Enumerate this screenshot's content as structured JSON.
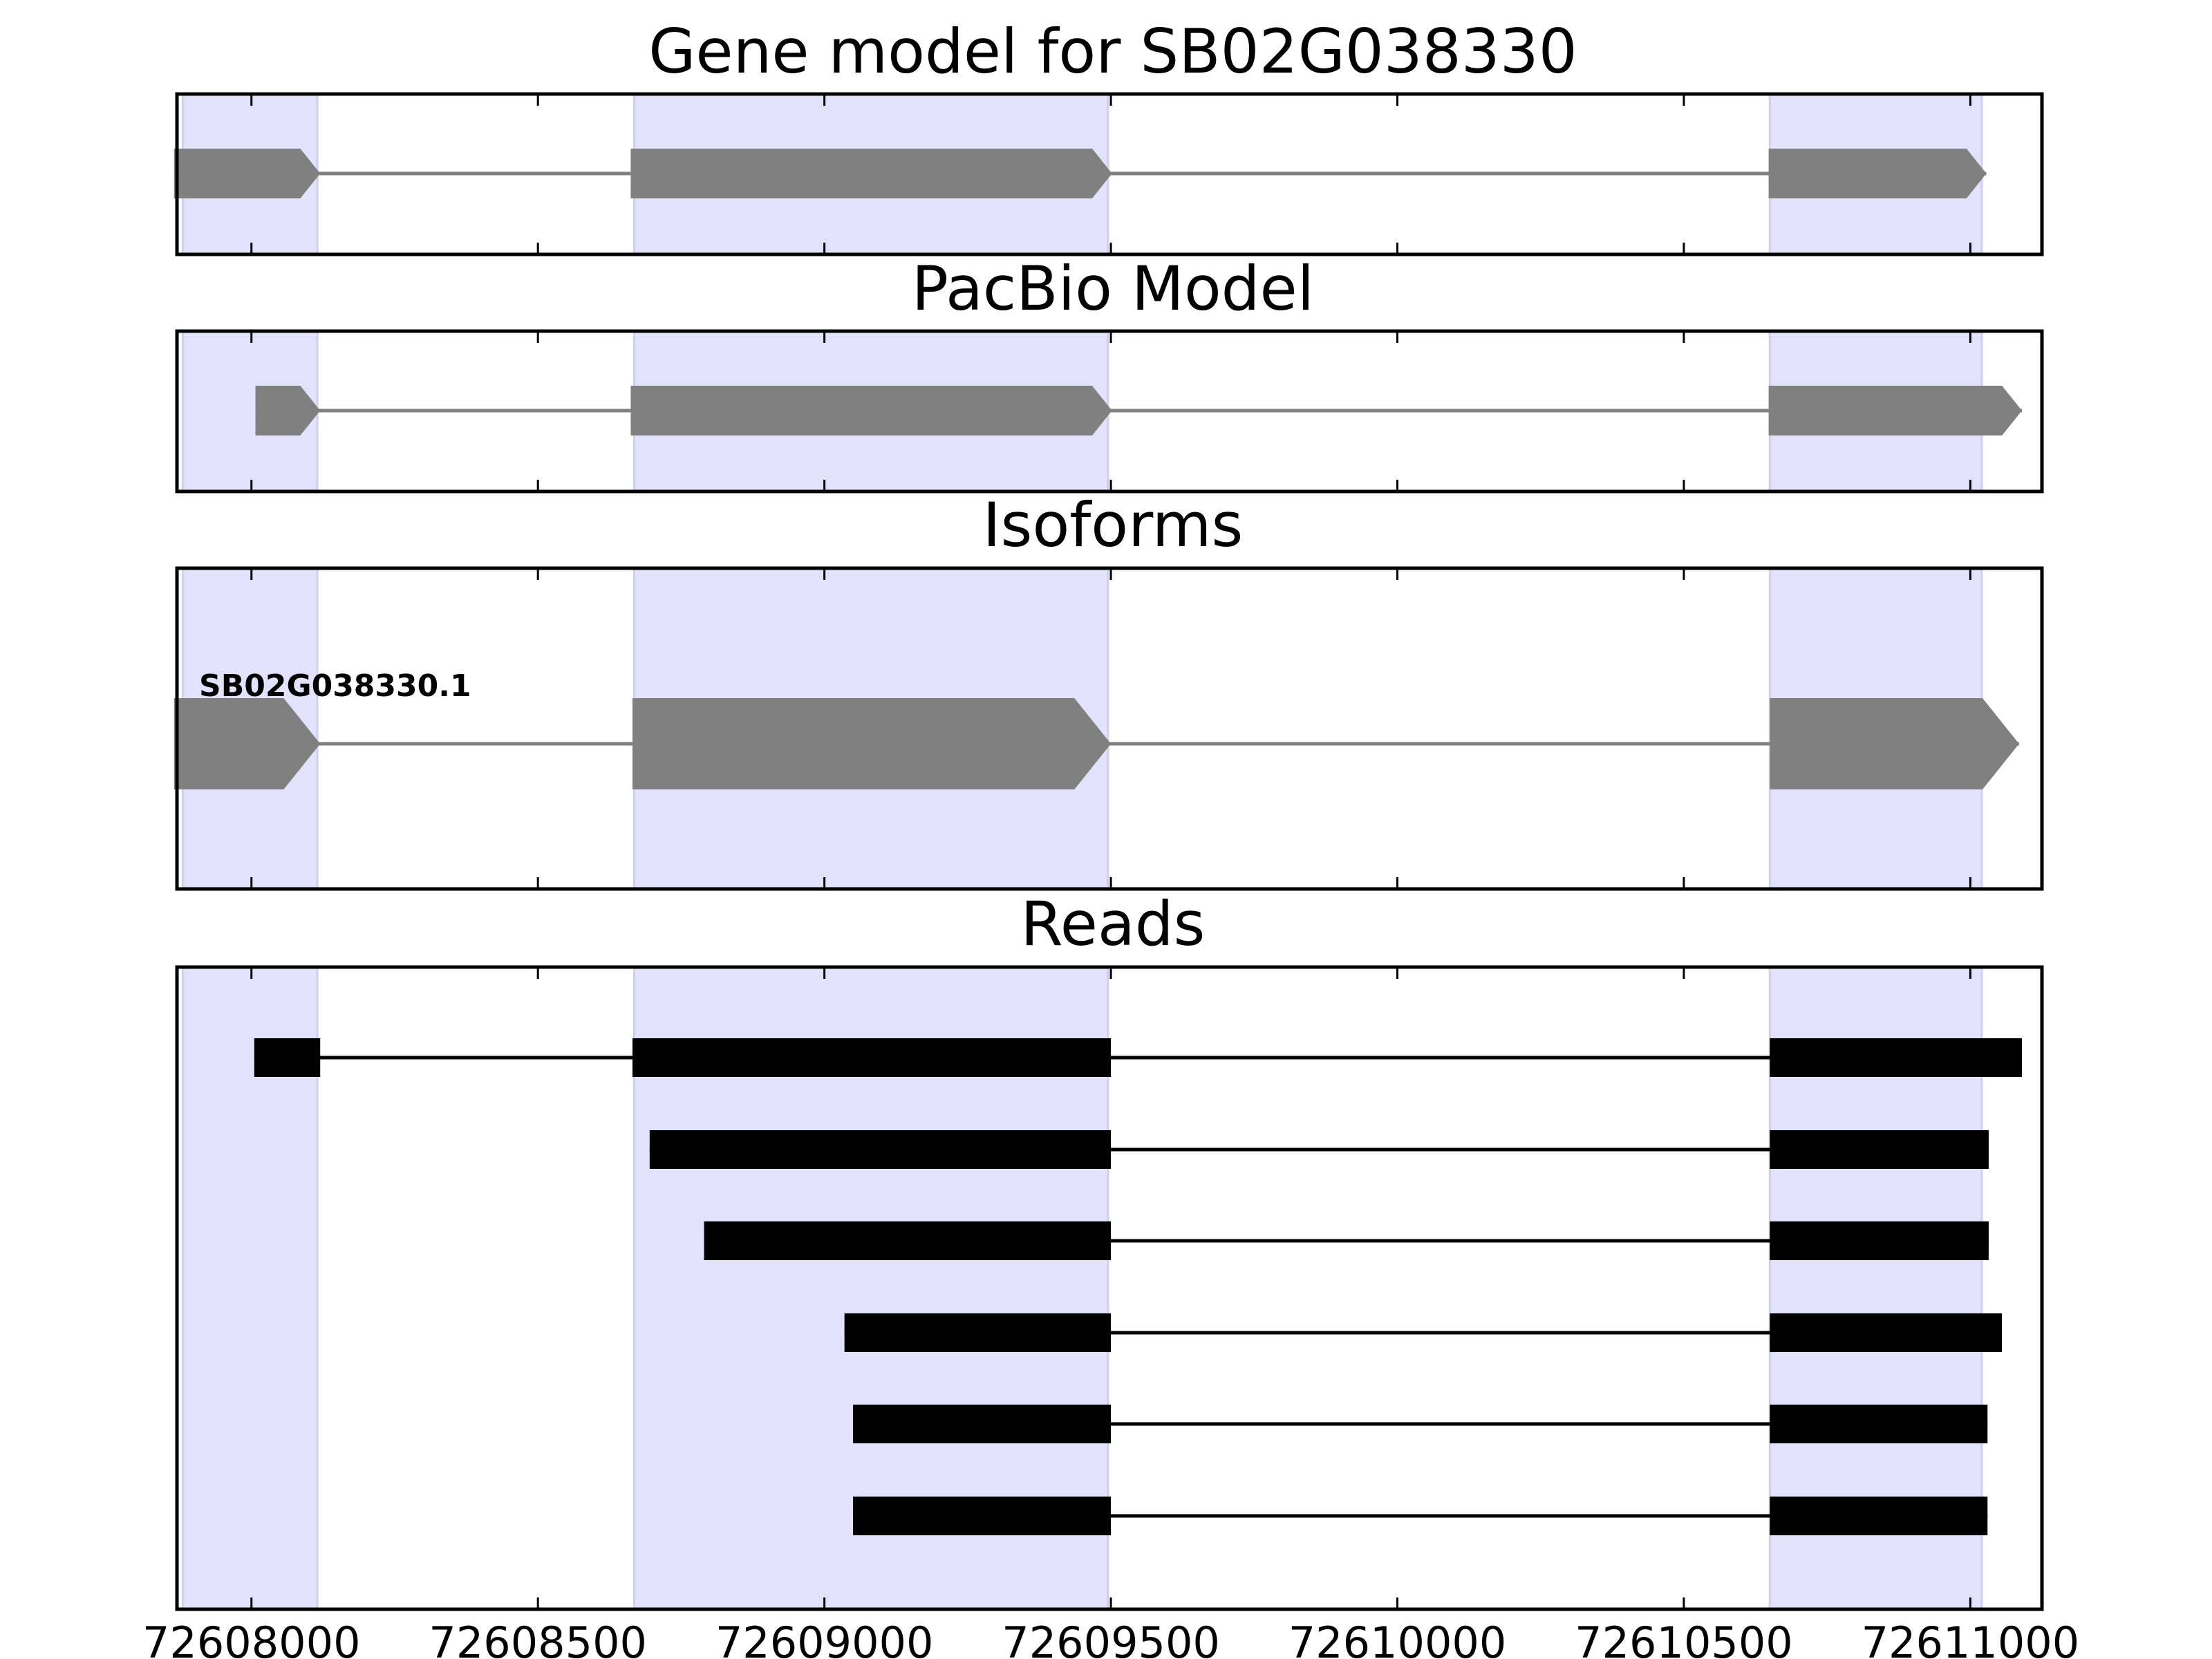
{
  "chart_data": {
    "type": "gene-model-track",
    "x_range": [
      72607870,
      72611125
    ],
    "x_ticks": [
      72608000,
      72608500,
      72609000,
      72609500,
      72610000,
      72610500,
      72611000
    ],
    "x_tick_labels": [
      "72608000",
      "72608500",
      "72609000",
      "72609500",
      "72610000",
      "72610500",
      "72611000"
    ],
    "highlight_regions": [
      {
        "start": 72607880,
        "end": 72608115
      },
      {
        "start": 72608668,
        "end": 72609495
      },
      {
        "start": 72610650,
        "end": 72611020
      }
    ],
    "colors": {
      "highlight": "#e2e2fc",
      "highlight_edge": "#cfcfee",
      "model": "#808080",
      "read": "#000000",
      "axis": "#000000"
    },
    "panels": [
      {
        "title": "Gene model for SB02G038330",
        "kind": "model",
        "rows": [
          {
            "label": "",
            "exons": [
              [
                72607865,
                72608120
              ],
              [
                72608662,
                72609502
              ],
              [
                72610648,
                72611028
              ]
            ]
          }
        ]
      },
      {
        "title": "PacBio Model",
        "kind": "model",
        "rows": [
          {
            "label": "",
            "exons": [
              [
                72608007,
                72608120
              ],
              [
                72608662,
                72609502
              ],
              [
                72610648,
                72611090
              ]
            ]
          }
        ]
      },
      {
        "title": "Isoforms",
        "kind": "isoform",
        "rows": [
          {
            "label": "SB02G038330.1",
            "exons": [
              [
                72607865,
                72608120
              ],
              [
                72608665,
                72609500
              ],
              [
                72610650,
                72611085
              ]
            ]
          }
        ]
      },
      {
        "title": "Reads",
        "kind": "reads",
        "rows": [
          {
            "label": "",
            "exons": [
              [
                72608005,
                72608120
              ],
              [
                72608665,
                72609500
              ],
              [
                72610650,
                72611090
              ]
            ]
          },
          {
            "label": "",
            "exons": [
              [
                72608695,
                72609500
              ],
              [
                72610650,
                72611032
              ]
            ]
          },
          {
            "label": "",
            "exons": [
              [
                72608790,
                72609500
              ],
              [
                72610650,
                72611032
              ]
            ]
          },
          {
            "label": "",
            "exons": [
              [
                72609035,
                72609500
              ],
              [
                72610650,
                72611055
              ]
            ]
          },
          {
            "label": "",
            "exons": [
              [
                72609050,
                72609500
              ],
              [
                72610650,
                72611030
              ]
            ]
          },
          {
            "label": "",
            "exons": [
              [
                72609050,
                72609500
              ],
              [
                72610650,
                72611030
              ]
            ]
          }
        ]
      }
    ]
  }
}
